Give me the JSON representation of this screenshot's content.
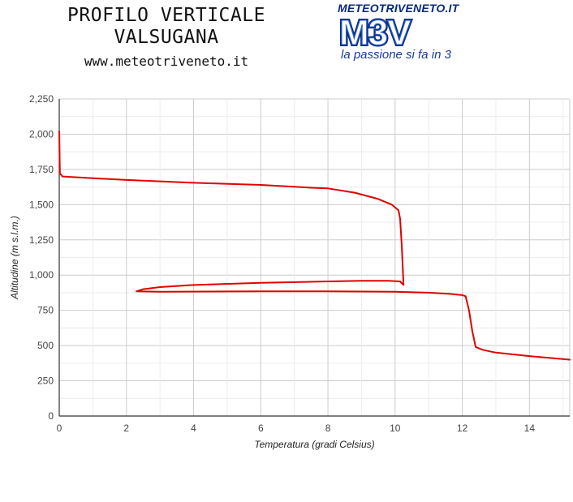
{
  "header": {
    "title_line1": "PROFILO VERTICALE",
    "title_line2": "VALSUGANA",
    "website": "www.meteotriveneto.it"
  },
  "logo": {
    "url_text": "METEOTRIVENETO.IT",
    "mark_text": "M3V",
    "tagline": "la passione si fa in 3"
  },
  "colors": {
    "series": "#e00000",
    "grid": "#cccccc",
    "axis": "#333333",
    "logo_dark": "#0a2a7a"
  },
  "chart_data": {
    "type": "line",
    "xlabel": "Temperatura (gradi Celsius)",
    "ylabel": "Altitudine (m s.l.m.)",
    "xlim": [
      0,
      15.2
    ],
    "ylim": [
      0,
      2250
    ],
    "x_ticks": [
      0,
      2,
      4,
      6,
      8,
      10,
      12,
      14
    ],
    "x_tick_labels": [
      "0",
      "2",
      "4",
      "6",
      "8",
      "10",
      "12",
      "14"
    ],
    "y_ticks": [
      0,
      250,
      500,
      750,
      1000,
      1250,
      1500,
      1750,
      2000,
      2250
    ],
    "y_tick_labels": [
      "0",
      "250",
      "500",
      "750",
      "1,000",
      "1,250",
      "1,500",
      "1,750",
      "2,000",
      "2,250"
    ],
    "grid": true,
    "series": [
      {
        "points": [
          [
            0.0,
            2020
          ],
          [
            0.02,
            1720
          ],
          [
            0.1,
            1700
          ],
          [
            0.8,
            1690
          ],
          [
            2.0,
            1675
          ],
          [
            4.0,
            1655
          ],
          [
            6.0,
            1640
          ],
          [
            7.5,
            1620
          ],
          [
            8.0,
            1615
          ],
          [
            8.8,
            1585
          ],
          [
            9.5,
            1540
          ],
          [
            9.9,
            1500
          ],
          [
            10.1,
            1460
          ],
          [
            10.15,
            1400
          ],
          [
            10.2,
            1200
          ],
          [
            10.25,
            930
          ],
          [
            10.15,
            955
          ],
          [
            9.8,
            960
          ],
          [
            9.0,
            960
          ],
          [
            8.0,
            955
          ],
          [
            6.0,
            945
          ],
          [
            4.0,
            930
          ],
          [
            3.0,
            915
          ],
          [
            2.5,
            900
          ],
          [
            2.3,
            885
          ],
          [
            3.0,
            882
          ],
          [
            6.0,
            885
          ],
          [
            8.0,
            885
          ],
          [
            10.0,
            882
          ],
          [
            11.0,
            875
          ],
          [
            11.6,
            868
          ],
          [
            12.0,
            858
          ],
          [
            12.1,
            850
          ],
          [
            12.2,
            750
          ],
          [
            12.3,
            600
          ],
          [
            12.4,
            490
          ],
          [
            12.6,
            470
          ],
          [
            13.0,
            450
          ],
          [
            14.0,
            425
          ],
          [
            15.2,
            400
          ]
        ]
      }
    ]
  }
}
